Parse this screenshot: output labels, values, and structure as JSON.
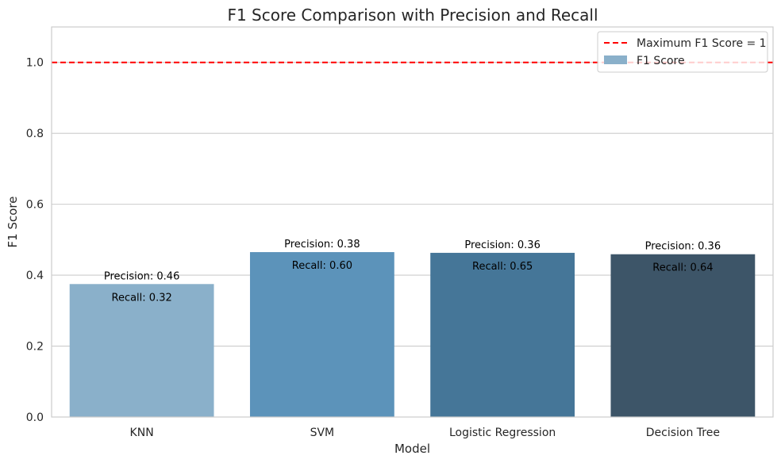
{
  "chart_data": {
    "type": "bar",
    "title": "F1 Score Comparison with Precision and Recall",
    "xlabel": "Model",
    "ylabel": "F1 Score",
    "ylim": [
      0,
      1.1
    ],
    "yticks": [
      "0.0",
      "0.2",
      "0.4",
      "0.6",
      "0.8",
      "1.0"
    ],
    "ytick_values": [
      0.0,
      0.2,
      0.4,
      0.6,
      0.8,
      1.0
    ],
    "grid": true,
    "legend_position": "top-right",
    "categories": [
      "KNN",
      "SVM",
      "Logistic Regression",
      "Decision Tree"
    ],
    "series": [
      {
        "name": "F1 Score",
        "values": [
          0.375,
          0.465,
          0.463,
          0.459
        ],
        "colors": [
          "#8ab0ca",
          "#5c93ba",
          "#457698",
          "#3d5568"
        ]
      }
    ],
    "annotations": {
      "precision": [
        "Precision: 0.46",
        "Precision: 0.38",
        "Precision: 0.36",
        "Precision: 0.36"
      ],
      "recall": [
        "Recall: 0.32",
        "Recall: 0.60",
        "Recall: 0.65",
        "Recall: 0.64"
      ]
    },
    "reference_line": {
      "value": 1.0,
      "label": "Maximum F1 Score = 1",
      "color": "#ff0000",
      "style": "dashed"
    },
    "legend": {
      "entries": [
        "Maximum F1 Score = 1",
        "F1 Score"
      ],
      "patch_color": "#8ab0ca"
    }
  }
}
